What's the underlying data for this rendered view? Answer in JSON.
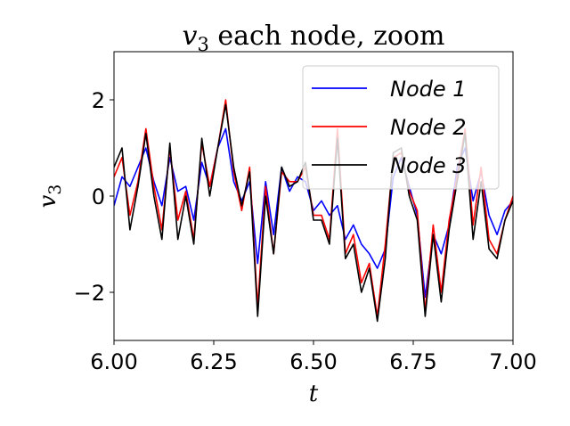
{
  "chart_data": {
    "type": "line",
    "title_var": "v",
    "title_sub": "3",
    "title_rest": " each node, zoom",
    "xlabel": "t",
    "ylabel_var": "v",
    "ylabel_sub": "3",
    "xlim": [
      6.0,
      7.0
    ],
    "ylim": [
      -3.0,
      3.0
    ],
    "xticks": [
      6.0,
      6.25,
      6.5,
      6.75,
      7.0
    ],
    "xtick_labels": [
      "6.00",
      "6.25",
      "6.50",
      "6.75",
      "7.00"
    ],
    "yticks": [
      -2,
      0,
      2
    ],
    "ytick_labels": [
      "−2",
      "0",
      "2"
    ],
    "legend_position": "top-right",
    "series": [
      {
        "name": "Node 1",
        "color": "#0000ff",
        "x": [
          6.0,
          6.02,
          6.04,
          6.06,
          6.08,
          6.1,
          6.12,
          6.14,
          6.16,
          6.18,
          6.2,
          6.22,
          6.24,
          6.26,
          6.28,
          6.3,
          6.32,
          6.34,
          6.36,
          6.38,
          6.4,
          6.42,
          6.44,
          6.46,
          6.48,
          6.5,
          6.52,
          6.54,
          6.56,
          6.58,
          6.6,
          6.62,
          6.64,
          6.66,
          6.68,
          6.7,
          6.72,
          6.74,
          6.76,
          6.78,
          6.8,
          6.82,
          6.84,
          6.86,
          6.88,
          6.9,
          6.92,
          6.94,
          6.96,
          6.98,
          7.0
        ],
        "y": [
          -0.2,
          0.4,
          0.2,
          0.6,
          1.0,
          0.3,
          -0.2,
          0.8,
          0.1,
          0.2,
          -0.5,
          0.7,
          0.2,
          1.0,
          1.4,
          0.3,
          -0.1,
          0.3,
          -1.4,
          0.3,
          -0.8,
          0.6,
          0.1,
          0.4,
          0.3,
          -0.3,
          -0.1,
          -0.4,
          -0.2,
          -0.9,
          -0.6,
          -1.0,
          -1.2,
          -1.5,
          -1.1,
          0.4,
          0.8,
          0.2,
          -0.4,
          -2.1,
          -0.8,
          -1.2,
          -0.6,
          0.6,
          1.0,
          -0.1,
          0.5,
          -0.4,
          -0.8,
          -0.3,
          -0.1
        ]
      },
      {
        "name": "Node 2",
        "color": "#ff0000",
        "x": [
          6.0,
          6.02,
          6.04,
          6.06,
          6.08,
          6.1,
          6.12,
          6.14,
          6.16,
          6.18,
          6.2,
          6.22,
          6.24,
          6.26,
          6.28,
          6.3,
          6.32,
          6.34,
          6.36,
          6.38,
          6.4,
          6.42,
          6.44,
          6.46,
          6.48,
          6.5,
          6.52,
          6.54,
          6.56,
          6.58,
          6.6,
          6.62,
          6.64,
          6.66,
          6.68,
          6.7,
          6.72,
          6.74,
          6.76,
          6.78,
          6.8,
          6.82,
          6.84,
          6.86,
          6.88,
          6.9,
          6.92,
          6.94,
          6.96,
          6.98,
          7.0
        ],
        "y": [
          0.4,
          0.8,
          -0.4,
          0.3,
          1.4,
          0.2,
          -0.7,
          1.0,
          -0.5,
          0.1,
          -0.9,
          1.1,
          0.2,
          1.0,
          2.0,
          0.5,
          -0.3,
          0.6,
          -2.3,
          0.2,
          -1.2,
          0.5,
          0.3,
          0.3,
          0.6,
          -0.4,
          -0.4,
          -0.9,
          1.4,
          -1.2,
          -0.8,
          -1.8,
          -1.4,
          -2.5,
          -1.0,
          0.8,
          0.9,
          0.1,
          -0.3,
          -2.4,
          -0.6,
          -2.0,
          -0.5,
          0.4,
          1.4,
          -0.6,
          0.6,
          -0.9,
          -1.2,
          -0.5,
          0.0
        ]
      },
      {
        "name": "Node 3",
        "color": "#000000",
        "x": [
          6.0,
          6.02,
          6.04,
          6.06,
          6.08,
          6.1,
          6.12,
          6.14,
          6.16,
          6.18,
          6.2,
          6.22,
          6.24,
          6.26,
          6.28,
          6.3,
          6.32,
          6.34,
          6.36,
          6.38,
          6.4,
          6.42,
          6.44,
          6.46,
          6.48,
          6.5,
          6.52,
          6.54,
          6.56,
          6.58,
          6.6,
          6.62,
          6.64,
          6.66,
          6.68,
          6.7,
          6.72,
          6.74,
          6.76,
          6.78,
          6.8,
          6.82,
          6.84,
          6.86,
          6.88,
          6.9,
          6.92,
          6.94,
          6.96,
          6.98,
          7.0
        ],
        "y": [
          0.6,
          1.0,
          -0.7,
          0.2,
          1.3,
          0.0,
          -0.9,
          1.1,
          -0.9,
          0.0,
          -1.0,
          1.2,
          0.0,
          1.0,
          1.9,
          0.6,
          -0.2,
          0.5,
          -2.5,
          0.0,
          -1.2,
          0.6,
          0.2,
          0.3,
          0.7,
          -0.5,
          -0.5,
          -1.0,
          1.2,
          -1.3,
          -1.0,
          -2.0,
          -1.5,
          -2.6,
          -1.3,
          0.9,
          1.0,
          0.0,
          -0.5,
          -2.5,
          -0.8,
          -2.2,
          -0.7,
          0.3,
          1.3,
          -0.9,
          0.3,
          -1.1,
          -1.3,
          -0.5,
          -0.1
        ]
      }
    ]
  }
}
